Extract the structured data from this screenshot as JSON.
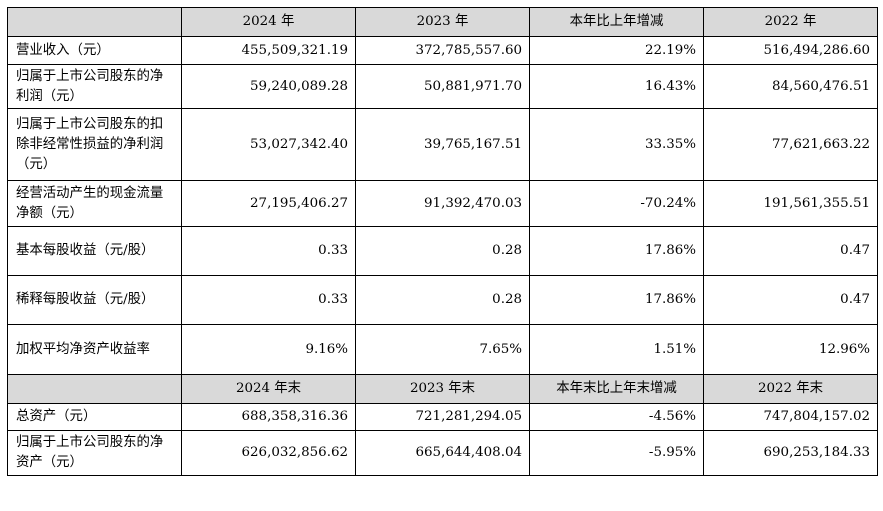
{
  "header1": [
    "",
    "2024 年",
    "2023 年",
    "本年比上年增减",
    "2022 年"
  ],
  "rows1": [
    {
      "label": "营业收入（元）",
      "v2024": "455,509,321.19",
      "v2023": "372,785,557.60",
      "change": "22.19%",
      "v2022": "516,494,286.60"
    },
    {
      "label": "归属于上市公司股东的净利润（元）",
      "v2024": "59,240,089.28",
      "v2023": "50,881,971.70",
      "change": "16.43%",
      "v2022": "84,560,476.51"
    },
    {
      "label": "归属于上市公司股东的扣除非经常性损益的净利润（元）",
      "v2024": "53,027,342.40",
      "v2023": "39,765,167.51",
      "change": "33.35%",
      "v2022": "77,621,663.22"
    },
    {
      "label": "经营活动产生的现金流量净额（元）",
      "v2024": "27,195,406.27",
      "v2023": "91,392,470.03",
      "change": "-70.24%",
      "v2022": "191,561,355.51"
    },
    {
      "label": "基本每股收益（元/股）",
      "v2024": "0.33",
      "v2023": "0.28",
      "change": "17.86%",
      "v2022": "0.47"
    },
    {
      "label": "稀释每股收益（元/股）",
      "v2024": "0.33",
      "v2023": "0.28",
      "change": "17.86%",
      "v2022": "0.47"
    },
    {
      "label": "加权平均净资产收益率",
      "v2024": "9.16%",
      "v2023": "7.65%",
      "change": "1.51%",
      "v2022": "12.96%"
    }
  ],
  "header2": [
    "",
    "2024 年末",
    "2023 年末",
    "本年末比上年末增减",
    "2022 年末"
  ],
  "rows2": [
    {
      "label": "总资产（元）",
      "v2024": "688,358,316.36",
      "v2023": "721,281,294.05",
      "change": "-4.56%",
      "v2022": "747,804,157.02"
    },
    {
      "label": "归属于上市公司股东的净资产（元）",
      "v2024": "626,032,856.62",
      "v2023": "665,644,408.04",
      "change": "-5.95%",
      "v2022": "690,253,184.33"
    }
  ]
}
